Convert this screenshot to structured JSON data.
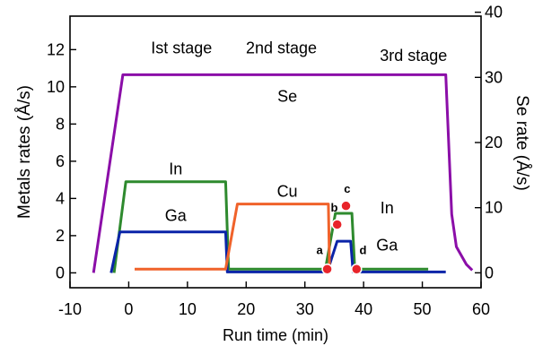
{
  "chart_data": {
    "type": "line",
    "xlabel": "Run time (min)",
    "ylabel": "Metals rates (Å/s)",
    "y2label": "Se rate (Å/s)",
    "xlim": [
      -10,
      60
    ],
    "ylim": [
      -0.8,
      13.8
    ],
    "y2lim": [
      -2.29,
      39.4
    ],
    "xticks": [
      -10,
      0,
      10,
      20,
      30,
      40,
      50,
      60
    ],
    "yticks": [
      0,
      2,
      4,
      6,
      8,
      10,
      12
    ],
    "y2ticks": [
      0,
      10,
      20,
      30,
      40
    ],
    "grid": false,
    "stage_labels": [
      {
        "text": "Ist stage",
        "x": 9,
        "y": 11.8
      },
      {
        "text": "2nd stage",
        "x": 26,
        "y": 11.8
      },
      {
        "text": "3rd stage",
        "x": 48.5,
        "y": 11.4
      }
    ],
    "series": [
      {
        "name": "Se",
        "axis": "right",
        "color": "#8b0ea8",
        "points": [
          [
            -6,
            0
          ],
          [
            -1,
            30.4
          ],
          [
            54,
            30.4
          ],
          [
            55,
            9
          ],
          [
            55.8,
            4
          ],
          [
            57.5,
            1.3
          ],
          [
            58.5,
            0.4
          ]
        ],
        "label": {
          "text": "Se",
          "x": 27,
          "y": 9.2
        }
      },
      {
        "name": "In",
        "axis": "left",
        "color": "#2e8a2e",
        "points": [
          [
            -2.5,
            0
          ],
          [
            -0.5,
            4.9
          ],
          [
            16.5,
            4.9
          ],
          [
            17,
            0.2
          ],
          [
            33.5,
            0.2
          ],
          [
            35.2,
            3.2
          ],
          [
            36.5,
            3.2
          ],
          [
            38,
            3.2
          ],
          [
            38.5,
            0.2
          ],
          [
            51,
            0.2
          ]
        ],
        "label": {
          "text": "In",
          "x": 8,
          "y": 5.3
        }
      },
      {
        "name": "Ga",
        "axis": "left",
        "color": "#0a24a8",
        "points": [
          [
            -3,
            0
          ],
          [
            -1.5,
            2.2
          ],
          [
            16.5,
            2.2
          ],
          [
            16.8,
            0.05
          ],
          [
            33.8,
            0.05
          ],
          [
            35.5,
            1.7
          ],
          [
            37.8,
            1.7
          ],
          [
            38.2,
            0.05
          ],
          [
            54,
            0.05
          ]
        ],
        "label": {
          "text": "Ga",
          "x": 8,
          "y": 2.8
        }
      },
      {
        "name": "Cu",
        "axis": "left",
        "color": "#f0622a",
        "points": [
          [
            1,
            0.2
          ],
          [
            16.5,
            0.2
          ],
          [
            18.5,
            3.7
          ],
          [
            34,
            3.7
          ],
          [
            34.2,
            0.2
          ]
        ],
        "label": {
          "text": "Cu",
          "x": 27,
          "y": 4.1
        }
      }
    ],
    "extra_labels": [
      {
        "text": "In",
        "x": 44,
        "y": 3.2
      },
      {
        "text": "Ga",
        "x": 44,
        "y": 1.2
      }
    ],
    "markers": [
      {
        "text": "a",
        "x": 33.8,
        "y": 0.2,
        "label_x": 32.5,
        "label_y": 1.0
      },
      {
        "text": "b",
        "x": 35.5,
        "y": 2.6,
        "label_x": 35.0,
        "label_y": 3.3
      },
      {
        "text": "c",
        "x": 37.0,
        "y": 3.6,
        "label_x": 37.2,
        "label_y": 4.3
      },
      {
        "text": "d",
        "x": 38.8,
        "y": 0.2,
        "label_x": 39.9,
        "label_y": 1.0
      }
    ],
    "marker_color": "#e8242a"
  }
}
